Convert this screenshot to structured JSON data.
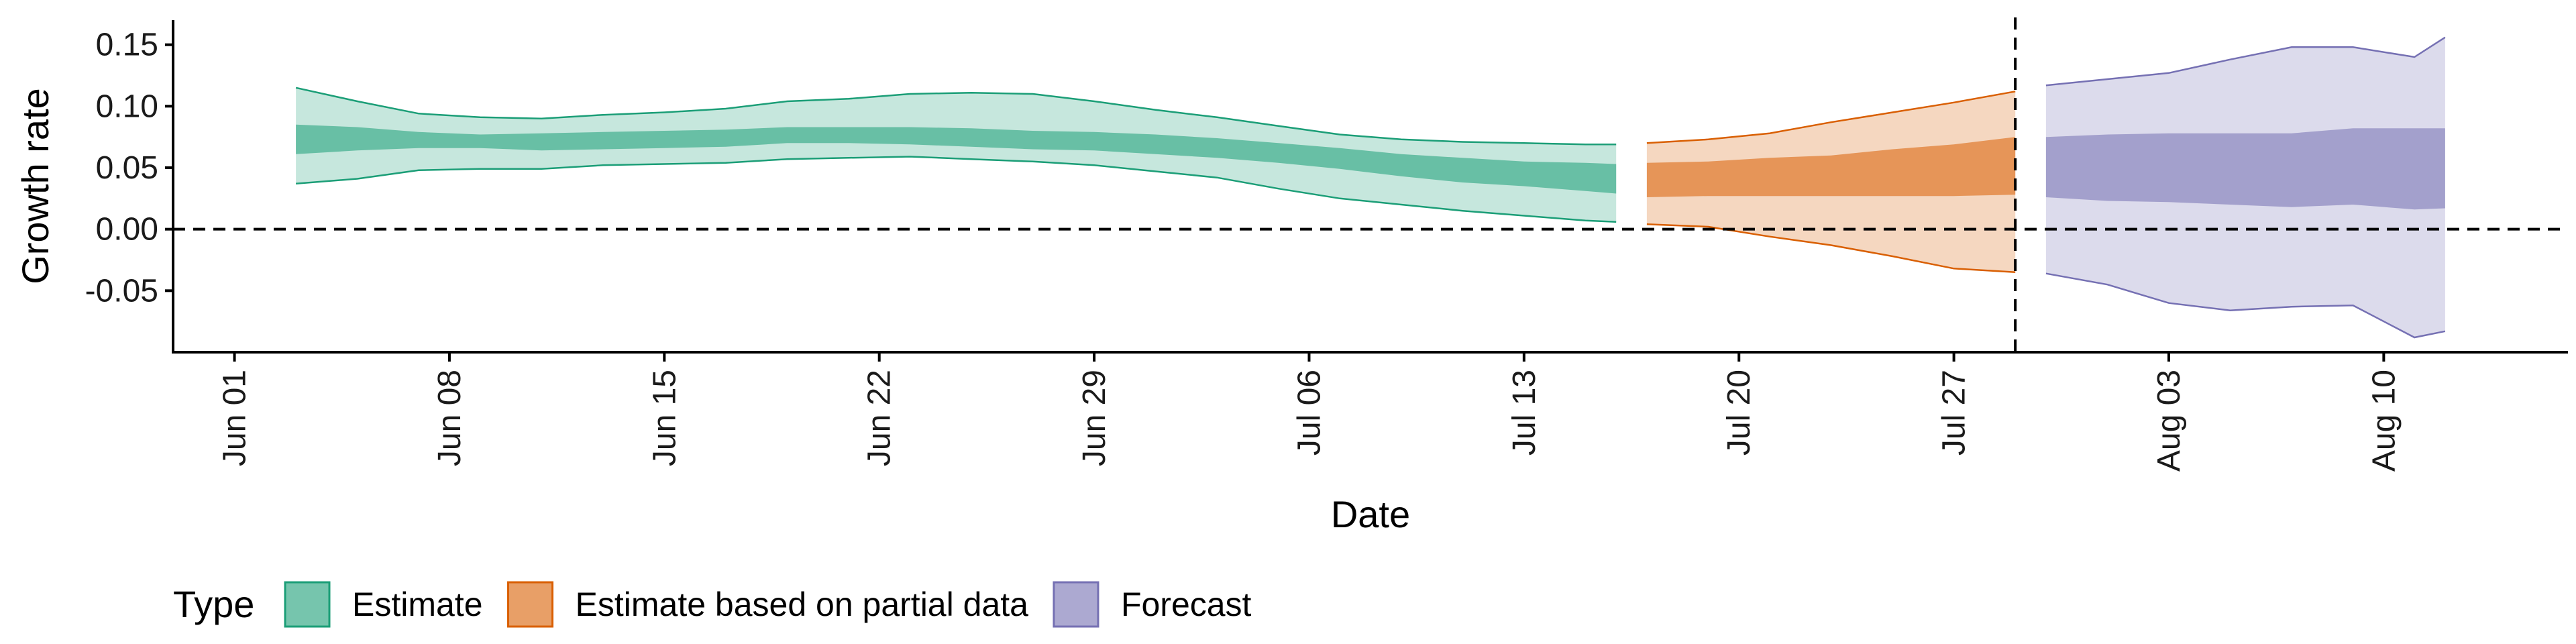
{
  "chart_data": {
    "type": "area",
    "xlabel": "Date",
    "ylabel": "Growth rate",
    "ylim": [
      -0.1,
      0.17
    ],
    "y_ticks": [
      -0.05,
      0.0,
      0.05,
      0.1,
      0.15
    ],
    "y_tick_labels": [
      "-0.05",
      "0.00",
      "0.05",
      "0.10",
      "0.15"
    ],
    "x_ticks": [
      "2020-06-01",
      "2020-06-08",
      "2020-06-15",
      "2020-06-22",
      "2020-06-29",
      "2020-07-06",
      "2020-07-13",
      "2020-07-20",
      "2020-07-27",
      "2020-08-03",
      "2020-08-10"
    ],
    "x_tick_labels": [
      "Jun 01",
      "Jun 08",
      "Jun 15",
      "Jun 22",
      "Jun 29",
      "Jul 06",
      "Jul 13",
      "Jul 20",
      "Jul 27",
      "Aug 03",
      "Aug 10"
    ],
    "x_range": [
      "2020-05-30",
      "2020-08-16"
    ],
    "hline_y": 0,
    "vline_x": "2020-07-29",
    "legend_title": "Type",
    "legend_position": "bottom-left",
    "grid": false,
    "series": [
      {
        "name": "Estimate",
        "color_fill": "#1b9e77",
        "x": [
          "2020-06-03",
          "2020-06-05",
          "2020-06-07",
          "2020-06-09",
          "2020-06-11",
          "2020-06-13",
          "2020-06-15",
          "2020-06-17",
          "2020-06-19",
          "2020-06-21",
          "2020-06-23",
          "2020-06-25",
          "2020-06-27",
          "2020-06-29",
          "2020-07-01",
          "2020-07-03",
          "2020-07-05",
          "2020-07-07",
          "2020-07-09",
          "2020-07-11",
          "2020-07-13",
          "2020-07-15",
          "2020-07-16"
        ],
        "upper90": [
          0.115,
          0.104,
          0.094,
          0.091,
          0.09,
          0.093,
          0.095,
          0.098,
          0.104,
          0.106,
          0.11,
          0.111,
          0.11,
          0.104,
          0.097,
          0.091,
          0.084,
          0.077,
          0.073,
          0.071,
          0.07,
          0.069,
          0.069
        ],
        "upper50": [
          0.085,
          0.083,
          0.079,
          0.077,
          0.078,
          0.079,
          0.08,
          0.081,
          0.083,
          0.083,
          0.083,
          0.082,
          0.08,
          0.079,
          0.077,
          0.074,
          0.07,
          0.066,
          0.061,
          0.058,
          0.055,
          0.054,
          0.053
        ],
        "lower50": [
          0.061,
          0.064,
          0.066,
          0.066,
          0.064,
          0.065,
          0.066,
          0.067,
          0.07,
          0.07,
          0.069,
          0.067,
          0.065,
          0.064,
          0.061,
          0.058,
          0.054,
          0.049,
          0.043,
          0.038,
          0.035,
          0.031,
          0.029
        ],
        "lower90": [
          0.037,
          0.041,
          0.048,
          0.049,
          0.049,
          0.052,
          0.053,
          0.054,
          0.057,
          0.058,
          0.059,
          0.057,
          0.055,
          0.052,
          0.047,
          0.042,
          0.033,
          0.025,
          0.02,
          0.015,
          0.011,
          0.007,
          0.006
        ]
      },
      {
        "name": "Estimate based on partial data",
        "color_fill": "#d95f02",
        "x": [
          "2020-07-17",
          "2020-07-19",
          "2020-07-21",
          "2020-07-23",
          "2020-07-25",
          "2020-07-27",
          "2020-07-29"
        ],
        "upper90": [
          0.07,
          0.073,
          0.078,
          0.087,
          0.095,
          0.103,
          0.112
        ],
        "upper50": [
          0.054,
          0.055,
          0.058,
          0.06,
          0.065,
          0.069,
          0.075
        ],
        "lower50": [
          0.026,
          0.027,
          0.027,
          0.027,
          0.027,
          0.027,
          0.028
        ],
        "lower90": [
          0.004,
          0.002,
          -0.006,
          -0.013,
          -0.022,
          -0.032,
          -0.035
        ]
      },
      {
        "name": "Forecast",
        "color_fill": "#7570b3",
        "x": [
          "2020-07-30",
          "2020-08-01",
          "2020-08-03",
          "2020-08-05",
          "2020-08-07",
          "2020-08-09",
          "2020-08-11",
          "2020-08-12"
        ],
        "upper90": [
          0.117,
          0.122,
          0.127,
          0.138,
          0.148,
          0.148,
          0.14,
          0.156
        ],
        "upper50": [
          0.075,
          0.077,
          0.078,
          0.078,
          0.078,
          0.082,
          0.082,
          0.082
        ],
        "lower50": [
          0.026,
          0.023,
          0.022,
          0.02,
          0.018,
          0.02,
          0.016,
          0.017
        ],
        "lower90": [
          -0.036,
          -0.045,
          -0.06,
          -0.066,
          -0.063,
          -0.062,
          -0.088,
          -0.083
        ]
      }
    ]
  }
}
